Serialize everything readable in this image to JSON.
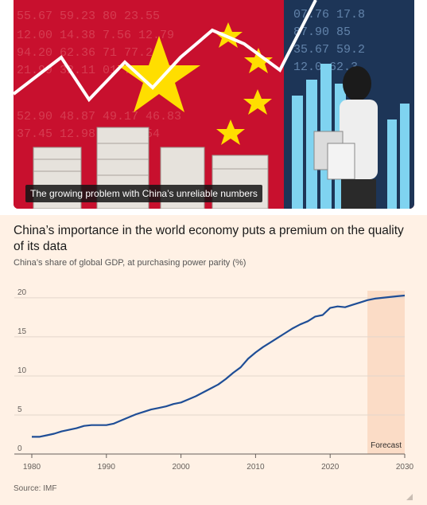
{
  "hero": {
    "caption": "The growing problem with China’s unreliable numbers",
    "colors": {
      "red": "#c8102e",
      "star": "#ffde00",
      "board": "#1d3557",
      "bars": "#7fd3f0"
    }
  },
  "chart": {
    "title": "China’s importance in the world economy puts a premium on the quality of its data",
    "subtitle": "China’s share of global GDP, at purchasing power parity (%)",
    "source": "Source: IMF",
    "forecast_label": "Forecast"
  },
  "chart_data": {
    "type": "line",
    "title": "China’s importance in the world economy puts a premium on the quality of its data",
    "subtitle": "China’s share of global GDP, at purchasing power parity (%)",
    "xlabel": "",
    "ylabel": "",
    "xlim": [
      1980,
      2030
    ],
    "ylim": [
      0,
      20.5
    ],
    "x_ticks": [
      1980,
      1990,
      2000,
      2010,
      2020,
      2030
    ],
    "y_ticks": [
      0,
      5,
      10,
      15,
      20
    ],
    "grid": "horizontal",
    "forecast_region": [
      2025,
      2030
    ],
    "line_color": "#1f4e96",
    "shade_color": "#fbdcc6",
    "x": [
      1980,
      1981,
      1982,
      1983,
      1984,
      1985,
      1986,
      1987,
      1988,
      1989,
      1990,
      1991,
      1992,
      1993,
      1994,
      1995,
      1996,
      1997,
      1998,
      1999,
      2000,
      2001,
      2002,
      2003,
      2004,
      2005,
      2006,
      2007,
      2008,
      2009,
      2010,
      2011,
      2012,
      2013,
      2014,
      2015,
      2016,
      2017,
      2018,
      2019,
      2020,
      2021,
      2022,
      2023,
      2024,
      2025,
      2026,
      2027,
      2028,
      2029,
      2030
    ],
    "y": [
      2.2,
      2.2,
      2.4,
      2.6,
      2.9,
      3.1,
      3.3,
      3.6,
      3.7,
      3.7,
      3.7,
      3.9,
      4.3,
      4.7,
      5.1,
      5.4,
      5.7,
      5.9,
      6.1,
      6.4,
      6.6,
      7.0,
      7.4,
      7.9,
      8.4,
      8.9,
      9.6,
      10.4,
      11.1,
      12.2,
      13.0,
      13.7,
      14.3,
      14.9,
      15.5,
      16.1,
      16.6,
      17.0,
      17.6,
      17.8,
      18.7,
      18.9,
      18.8,
      19.1,
      19.4,
      19.7,
      19.9,
      20.0,
      20.1,
      20.2,
      20.3
    ]
  }
}
